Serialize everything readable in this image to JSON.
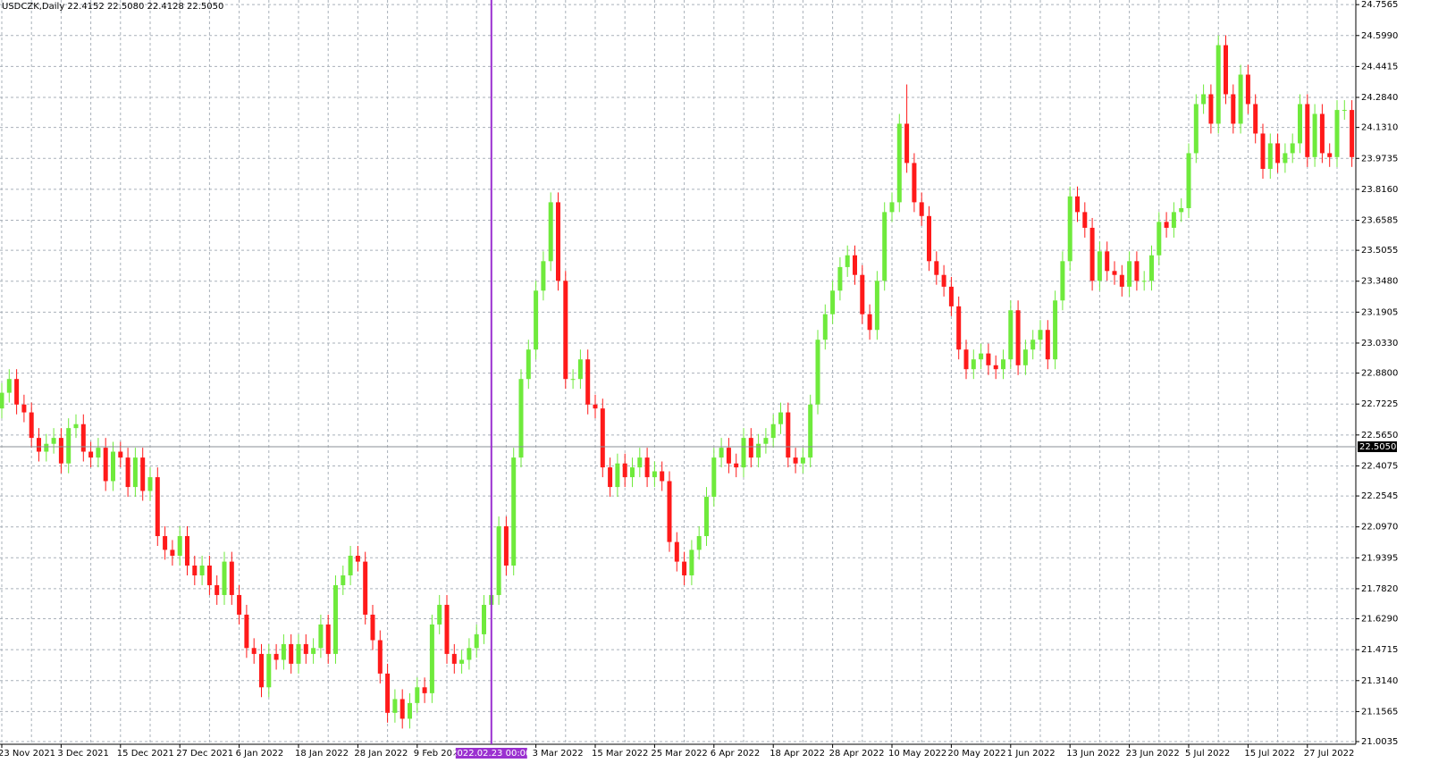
{
  "chart_data": {
    "type": "candlestick",
    "title": "USDCZK,Daily  22.4152 22.5080 22.4128 22.5050",
    "categories": [
      "23 Nov 2021",
      null,
      null,
      null,
      null,
      null,
      null,
      null,
      "3 Dec 2021",
      null,
      null,
      null,
      null,
      null,
      null,
      null,
      "15 Dec 2021",
      null,
      null,
      null,
      null,
      null,
      null,
      null,
      "27 Dec 2021",
      null,
      null,
      null,
      null,
      null,
      null,
      null,
      "6 Jan 2022",
      null,
      null,
      null,
      null,
      null,
      null,
      null,
      "18 Jan 2022",
      null,
      null,
      null,
      null,
      null,
      null,
      null,
      "28 Jan 2022",
      null,
      null,
      null,
      null,
      null,
      null,
      null,
      "9 Feb 2022",
      null,
      null,
      null,
      null,
      null,
      null,
      null,
      null,
      null,
      "2022.02.23 00:00",
      null,
      null,
      null,
      null,
      null,
      "3 Mar 2022",
      null,
      null,
      null,
      null,
      null,
      null,
      null,
      "15 Mar 2022",
      null,
      null,
      null,
      null,
      null,
      null,
      null,
      "25 Mar 2022",
      null,
      null,
      null,
      null,
      null,
      null,
      null,
      "6 Apr 2022",
      null,
      null,
      null,
      null,
      null,
      null,
      null,
      "18 Apr 2022",
      null,
      null,
      null,
      null,
      null,
      null,
      null,
      "28 Apr 2022",
      null,
      null,
      null,
      null,
      null,
      null,
      null,
      "10 May 2022",
      null,
      null,
      null,
      null,
      null,
      null,
      null,
      "20 May 2022",
      null,
      null,
      null,
      null,
      null,
      null,
      null,
      "1 Jun 2022",
      null,
      null,
      null,
      null,
      null,
      null,
      null,
      "13 Jun 2022",
      null,
      null,
      null,
      null,
      null,
      null,
      null,
      "23 Jun 2022",
      null,
      null,
      null,
      null,
      null,
      null,
      null,
      "5 Jul 2022",
      null,
      null,
      null,
      null,
      null,
      null,
      null,
      "15 Jul 2022",
      null,
      null,
      null,
      null,
      null,
      null,
      null,
      "27 Jul 2022",
      null,
      null,
      null,
      null,
      null,
      null
    ],
    "open": [
      22.7,
      22.78,
      22.85,
      22.72,
      22.68,
      22.55,
      22.48,
      22.52,
      22.55,
      22.42,
      22.6,
      22.62,
      22.48,
      22.45,
      22.5,
      22.33,
      22.48,
      22.45,
      22.3,
      22.45,
      22.28,
      22.35,
      22.05,
      21.98,
      21.95,
      22.05,
      21.9,
      21.85,
      21.9,
      21.8,
      21.75,
      21.92,
      21.75,
      21.65,
      21.48,
      21.45,
      21.28,
      21.45,
      21.42,
      21.5,
      21.4,
      21.5,
      21.45,
      21.48,
      21.6,
      21.45,
      21.8,
      21.85,
      21.95,
      21.92,
      21.65,
      21.52,
      21.35,
      21.15,
      21.22,
      21.12,
      21.2,
      21.28,
      21.25,
      21.6,
      21.7,
      21.45,
      21.4,
      21.42,
      21.48,
      21.55,
      21.7,
      21.75,
      22.1,
      21.9,
      22.45,
      22.85,
      23.0,
      23.3,
      23.45,
      23.75,
      23.35,
      22.85,
      22.85,
      22.95,
      22.72,
      22.7,
      22.4,
      22.3,
      22.42,
      22.35,
      22.4,
      22.45,
      22.35,
      22.38,
      22.33,
      22.02,
      21.92,
      21.85,
      21.98,
      22.05,
      22.25,
      22.45,
      22.5,
      22.42,
      22.4,
      22.55,
      22.45,
      22.52,
      22.55,
      22.62,
      22.68,
      22.45,
      22.42,
      22.45,
      22.72,
      23.05,
      23.18,
      23.3,
      23.42,
      23.48,
      23.38,
      23.18,
      23.1,
      23.35,
      23.7,
      23.75,
      24.15,
      23.95,
      23.75,
      23.68,
      23.45,
      23.38,
      23.32,
      23.22,
      23.0,
      22.9,
      22.95,
      22.98,
      22.92,
      22.9,
      22.95,
      23.2,
      22.92,
      23.0,
      23.05,
      23.1,
      22.95,
      23.25,
      23.45,
      23.78,
      23.7,
      23.62,
      23.35,
      23.5,
      23.4,
      23.38,
      23.32,
      23.45,
      23.35,
      23.35,
      23.48,
      23.65,
      23.62,
      23.7,
      23.72,
      24.0,
      24.25,
      24.3,
      24.15,
      24.55,
      24.3,
      24.15,
      24.4,
      24.25,
      24.1,
      23.92,
      24.05,
      23.95,
      24.0,
      24.05,
      24.25,
      23.98,
      24.2,
      24.0,
      23.98,
      24.22,
      24.22
    ],
    "high": [
      22.83,
      22.9,
      22.9,
      22.77,
      22.73,
      22.6,
      22.57,
      22.6,
      22.6,
      22.65,
      22.67,
      22.67,
      22.53,
      22.55,
      22.55,
      22.53,
      22.53,
      22.5,
      22.5,
      22.5,
      22.4,
      22.4,
      22.1,
      22.03,
      22.1,
      22.1,
      21.95,
      21.95,
      21.95,
      21.85,
      21.97,
      21.97,
      21.8,
      21.7,
      21.53,
      21.5,
      21.5,
      21.5,
      21.55,
      21.55,
      21.55,
      21.55,
      21.53,
      21.65,
      21.65,
      21.85,
      21.9,
      22.0,
      22.0,
      21.97,
      21.7,
      21.57,
      21.4,
      21.27,
      21.27,
      21.25,
      21.33,
      21.33,
      21.65,
      21.75,
      21.75,
      21.5,
      21.47,
      21.53,
      21.6,
      21.75,
      21.8,
      22.15,
      22.15,
      22.5,
      22.9,
      23.05,
      23.35,
      23.5,
      23.8,
      23.8,
      23.4,
      22.9,
      23.0,
      23.0,
      22.77,
      22.75,
      22.45,
      22.47,
      22.47,
      22.45,
      22.5,
      22.5,
      22.43,
      22.43,
      22.38,
      22.07,
      21.97,
      22.03,
      22.1,
      22.3,
      22.5,
      22.55,
      22.55,
      22.47,
      22.6,
      22.6,
      22.57,
      22.6,
      22.67,
      22.73,
      22.73,
      22.5,
      22.5,
      22.77,
      23.1,
      23.23,
      23.35,
      23.47,
      23.53,
      23.53,
      23.43,
      23.23,
      23.4,
      23.75,
      23.8,
      24.2,
      24.35,
      24.0,
      23.8,
      23.73,
      23.5,
      23.43,
      23.37,
      23.27,
      23.05,
      23.0,
      23.03,
      23.03,
      22.97,
      23.0,
      23.25,
      23.25,
      23.05,
      23.1,
      23.15,
      23.15,
      23.3,
      23.5,
      23.83,
      23.83,
      23.75,
      23.67,
      23.55,
      23.55,
      23.45,
      23.43,
      23.5,
      23.5,
      23.4,
      23.53,
      23.7,
      23.7,
      23.75,
      23.77,
      24.05,
      24.3,
      24.35,
      24.35,
      24.6,
      24.6,
      24.35,
      24.45,
      24.45,
      24.3,
      24.15,
      24.1,
      24.1,
      24.05,
      24.1,
      24.3,
      24.3,
      24.25,
      24.25,
      24.05,
      24.27,
      24.27,
      24.27
    ],
    "low": [
      22.65,
      22.73,
      22.67,
      22.63,
      22.5,
      22.43,
      22.43,
      22.47,
      22.37,
      22.37,
      22.55,
      22.43,
      22.4,
      22.4,
      22.28,
      22.28,
      22.4,
      22.25,
      22.25,
      22.23,
      22.23,
      22.0,
      21.93,
      21.9,
      21.9,
      21.85,
      21.8,
      21.8,
      21.75,
      21.7,
      21.7,
      21.7,
      21.6,
      21.43,
      21.4,
      21.23,
      21.23,
      21.37,
      21.37,
      21.35,
      21.35,
      21.4,
      21.4,
      21.43,
      21.4,
      21.4,
      21.75,
      21.8,
      21.87,
      21.6,
      21.47,
      21.3,
      21.1,
      21.1,
      21.07,
      21.07,
      21.15,
      21.2,
      21.2,
      21.55,
      21.4,
      21.35,
      21.35,
      21.37,
      21.43,
      21.5,
      21.65,
      21.7,
      21.85,
      21.85,
      22.4,
      22.8,
      22.95,
      23.25,
      23.4,
      23.3,
      22.8,
      22.8,
      22.8,
      22.67,
      22.65,
      22.35,
      22.25,
      22.25,
      22.3,
      22.3,
      22.35,
      22.3,
      22.3,
      22.28,
      21.97,
      21.87,
      21.8,
      21.8,
      21.93,
      22.0,
      22.2,
      22.4,
      22.37,
      22.35,
      22.35,
      22.4,
      22.4,
      22.47,
      22.5,
      22.57,
      22.4,
      22.37,
      22.37,
      22.4,
      22.67,
      23.0,
      23.13,
      23.25,
      23.37,
      23.33,
      23.13,
      23.05,
      23.05,
      23.3,
      23.65,
      23.7,
      23.9,
      23.7,
      23.63,
      23.4,
      23.33,
      23.27,
      23.17,
      22.95,
      22.85,
      22.85,
      22.9,
      22.87,
      22.85,
      22.85,
      22.9,
      22.87,
      22.87,
      22.95,
      23.0,
      22.9,
      22.9,
      23.2,
      23.4,
      23.65,
      23.57,
      23.3,
      23.3,
      23.35,
      23.33,
      23.27,
      23.27,
      23.3,
      23.3,
      23.3,
      23.43,
      23.57,
      23.57,
      23.65,
      23.67,
      23.95,
      24.2,
      24.1,
      24.1,
      24.25,
      24.1,
      24.1,
      24.2,
      24.05,
      23.87,
      23.87,
      23.9,
      23.9,
      23.95,
      24.0,
      23.93,
      23.93,
      23.95,
      23.93,
      23.93,
      24.17,
      23.93
    ],
    "close": [
      22.78,
      22.85,
      22.72,
      22.68,
      22.55,
      22.48,
      22.52,
      22.55,
      22.42,
      22.6,
      22.62,
      22.48,
      22.45,
      22.5,
      22.33,
      22.48,
      22.45,
      22.3,
      22.45,
      22.28,
      22.35,
      22.05,
      21.98,
      21.95,
      22.05,
      21.9,
      21.85,
      21.9,
      21.8,
      21.75,
      21.92,
      21.75,
      21.65,
      21.48,
      21.45,
      21.28,
      21.45,
      21.42,
      21.5,
      21.4,
      21.5,
      21.45,
      21.48,
      21.6,
      21.45,
      21.8,
      21.85,
      21.95,
      21.92,
      21.65,
      21.52,
      21.35,
      21.15,
      21.22,
      21.12,
      21.2,
      21.28,
      21.25,
      21.6,
      21.7,
      21.45,
      21.4,
      21.42,
      21.48,
      21.55,
      21.7,
      21.75,
      22.1,
      21.9,
      22.45,
      22.85,
      23.0,
      23.3,
      23.45,
      23.75,
      23.35,
      22.85,
      22.85,
      22.95,
      22.72,
      22.7,
      22.4,
      22.3,
      22.42,
      22.35,
      22.4,
      22.45,
      22.35,
      22.38,
      22.33,
      22.02,
      21.92,
      21.85,
      21.98,
      22.05,
      22.25,
      22.45,
      22.5,
      22.42,
      22.4,
      22.55,
      22.45,
      22.52,
      22.55,
      22.62,
      22.68,
      22.45,
      22.42,
      22.45,
      22.72,
      23.05,
      23.18,
      23.3,
      23.42,
      23.48,
      23.38,
      23.18,
      23.1,
      23.35,
      23.7,
      23.75,
      24.15,
      23.95,
      23.75,
      23.68,
      23.45,
      23.38,
      23.32,
      23.22,
      23.0,
      22.9,
      22.95,
      22.98,
      22.92,
      22.9,
      22.95,
      23.2,
      22.92,
      23.0,
      23.05,
      23.1,
      22.95,
      23.25,
      23.45,
      23.78,
      23.7,
      23.62,
      23.35,
      23.5,
      23.4,
      23.38,
      23.32,
      23.45,
      23.35,
      23.35,
      23.48,
      23.65,
      23.62,
      23.7,
      23.72,
      24.0,
      24.25,
      24.3,
      24.15,
      24.55,
      24.3,
      24.15,
      24.4,
      24.25,
      24.1,
      23.92,
      24.05,
      23.95,
      24.0,
      24.05,
      24.25,
      23.98,
      24.2,
      24.0,
      23.98,
      24.22,
      24.22,
      23.98
    ],
    "up_color": "#6fea3c",
    "down_color": "#ff1a1a",
    "ylim": [
      20.99,
      24.78
    ],
    "yticks": [
      24.7565,
      {
        "value": 24.599,
        "label": "24.5990"
      },
      24.4415,
      {
        "value": 24.284,
        "label": "24.2840"
      },
      {
        "value": 24.131,
        "label": "24.1310"
      },
      23.9735,
      {
        "value": 23.816,
        "label": "23.8160"
      },
      23.6585,
      23.5055,
      {
        "value": 23.348,
        "label": "23.3480"
      },
      23.1905,
      {
        "value": 23.033,
        "label": "23.0330"
      },
      {
        "value": 22.88,
        "label": "22.8800"
      },
      22.7225,
      {
        "value": 22.565,
        "label": "22.5650"
      },
      22.4075,
      22.2545,
      {
        "value": 22.097,
        "label": "22.0970"
      },
      21.9395,
      {
        "value": 21.782,
        "label": "21.7820"
      },
      {
        "value": 21.629,
        "label": "21.6290"
      },
      21.4715,
      {
        "value": 21.314,
        "label": "21.3140"
      },
      21.1565,
      21.0035
    ],
    "grid": true,
    "crosshair": {
      "x": 66,
      "y": {
        "value": 22.505,
        "label": "22.5050"
      }
    }
  }
}
